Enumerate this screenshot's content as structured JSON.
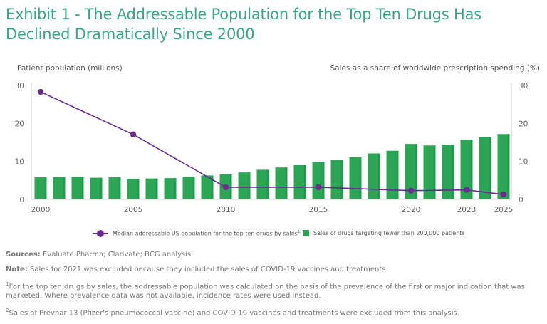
{
  "title": "Exhibit 1 - The Addressable Population for the Top Ten Drugs Has Declined Dramatically Since 2000",
  "colors": {
    "title": "#3aa887",
    "bars": "#2aa655",
    "line": "#6a2c8e",
    "axis": "#cccccc",
    "text": "#666666"
  },
  "chart_data": {
    "type": "bar+line",
    "title": "Exhibit 1 - The Addressable Population for the Top Ten Drugs Has Declined Dramatically Since 2000",
    "xlabel": "",
    "ylabel_left": "Patient population (millions)",
    "ylabel_right": "Sales as a share of worldwide prescription spending (%)",
    "ylim_left": [
      0,
      30
    ],
    "ylim_right": [
      0,
      30
    ],
    "yticks_left": [
      "0",
      "10",
      "20",
      "30"
    ],
    "yticks_right": [
      "0",
      "10",
      "20",
      "30"
    ],
    "x": [
      2000,
      2001,
      2002,
      2003,
      2004,
      2005,
      2006,
      2007,
      2008,
      2009,
      2010,
      2011,
      2012,
      2013,
      2014,
      2015,
      2016,
      2017,
      2018,
      2019,
      2020,
      2021,
      2022,
      2023,
      2024,
      2025
    ],
    "xtick_labels": [
      "2000",
      "2005",
      "2010",
      "2015",
      "2020",
      "2023",
      "2025"
    ],
    "grid": false,
    "legend_position": "bottom",
    "series": [
      {
        "name": "Sales of drugs targeting fewer than 200,000 patients",
        "type": "bar",
        "axis": "right",
        "x": [
          2000,
          2001,
          2002,
          2003,
          2004,
          2005,
          2006,
          2007,
          2008,
          2009,
          2010,
          2011,
          2012,
          2013,
          2014,
          2015,
          2016,
          2017,
          2018,
          2019,
          2020,
          2021,
          2022,
          2023,
          2024,
          2025
        ],
        "values": [
          5.8,
          5.9,
          6.0,
          5.7,
          5.8,
          5.4,
          5.5,
          5.6,
          6.0,
          6.3,
          6.6,
          7.1,
          7.8,
          8.4,
          9.0,
          9.8,
          10.4,
          11.1,
          12.1,
          12.8,
          14.6,
          14.2,
          14.4,
          15.7,
          16.5,
          17.2
        ]
      },
      {
        "name": "Median addressable US population for the top ten drugs by sales",
        "name_superscript": "1, 2",
        "type": "line",
        "axis": "left",
        "x": [
          2000,
          2005,
          2010,
          2015,
          2020,
          2023,
          2025
        ],
        "values": [
          28.3,
          17.1,
          3.2,
          3.2,
          2.3,
          2.5,
          1.3
        ]
      }
    ]
  },
  "legend": {
    "line_label": "Median addressable US population for the top ten drugs by sales",
    "line_sup": "1, 2",
    "bar_label": "Sales of drugs targeting fewer than 200,000 patients"
  },
  "notes": {
    "sources_label": "Sources:",
    "sources_text": " Evaluate Pharma; Clarivate; BCG analysis.",
    "note_label": "Note:",
    "note_text": " Sales for 2021 was excluded because they included the sales of COVID-19 vaccines and treatments.",
    "footnote1_mark": "1",
    "footnote1_text": "For the top ten drugs by sales, the addressable population was calculated on the basis of the prevalence of the first or major indication that was marketed. Where prevalence data was not available, incidence rates were used instead.",
    "footnote2_mark": "2",
    "footnote2_text": "Sales of Prevnar 13 (Pfizer's pneumococcal vaccine) and COVID-19 vaccines and treatments were excluded from this analysis."
  }
}
